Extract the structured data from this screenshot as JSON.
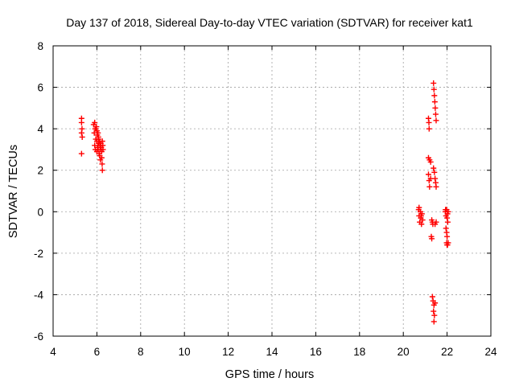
{
  "chart_data": {
    "type": "scatter",
    "title": "Day 137 of 2018, Sidereal Day-to-day VTEC variation (SDTVAR) for receiver kat1",
    "xlabel": "GPS time / hours",
    "ylabel": "SDTVAR / TECUs",
    "xlim": [
      4,
      24
    ],
    "ylim": [
      -6,
      8
    ],
    "xticks": [
      "4",
      "6",
      "8",
      "10",
      "12",
      "14",
      "16",
      "18",
      "20",
      "22",
      "24"
    ],
    "yticks": [
      "-6",
      "-4",
      "-2",
      "0",
      "2",
      "4",
      "6",
      "8"
    ],
    "grid": true,
    "marker": "+",
    "color": "#ff0000",
    "series": [
      {
        "name": "kat1",
        "points": [
          [
            5.3,
            4.5
          ],
          [
            5.3,
            4.3
          ],
          [
            5.32,
            4.0
          ],
          [
            5.3,
            3.8
          ],
          [
            5.33,
            3.6
          ],
          [
            5.3,
            2.8
          ],
          [
            5.85,
            4.2
          ],
          [
            5.9,
            4.3
          ],
          [
            5.92,
            4.0
          ],
          [
            5.88,
            3.8
          ],
          [
            5.95,
            3.5
          ],
          [
            5.9,
            3.2
          ],
          [
            5.93,
            3.0
          ],
          [
            5.98,
            4.1
          ],
          [
            6.0,
            3.9
          ],
          [
            6.02,
            3.7
          ],
          [
            6.0,
            3.4
          ],
          [
            6.03,
            3.1
          ],
          [
            6.0,
            2.9
          ],
          [
            6.05,
            3.8
          ],
          [
            6.07,
            3.6
          ],
          [
            6.08,
            3.3
          ],
          [
            6.06,
            3.0
          ],
          [
            6.1,
            2.8
          ],
          [
            6.08,
            3.5
          ],
          [
            6.12,
            3.4
          ],
          [
            6.14,
            3.2
          ],
          [
            6.15,
            3.0
          ],
          [
            6.13,
            2.7
          ],
          [
            6.16,
            2.5
          ],
          [
            6.18,
            3.3
          ],
          [
            6.2,
            3.1
          ],
          [
            6.22,
            2.9
          ],
          [
            6.22,
            2.6
          ],
          [
            6.24,
            2.3
          ],
          [
            6.25,
            2.0
          ],
          [
            6.25,
            3.4
          ],
          [
            6.27,
            3.2
          ],
          [
            6.28,
            3.0
          ],
          [
            5.95,
            4.0
          ],
          [
            6.05,
            3.2
          ],
          [
            20.7,
            0.1
          ],
          [
            20.72,
            -0.2
          ],
          [
            20.75,
            -0.5
          ],
          [
            20.78,
            0.0
          ],
          [
            20.8,
            -0.3
          ],
          [
            20.83,
            -0.6
          ],
          [
            20.85,
            -0.1
          ],
          [
            20.88,
            -0.4
          ],
          [
            20.72,
            0.2
          ],
          [
            20.82,
            -0.2
          ],
          [
            21.15,
            4.5
          ],
          [
            21.17,
            4.3
          ],
          [
            21.18,
            4.0
          ],
          [
            21.15,
            2.6
          ],
          [
            21.2,
            2.5
          ],
          [
            21.25,
            2.4
          ],
          [
            21.15,
            1.8
          ],
          [
            21.18,
            1.5
          ],
          [
            21.2,
            1.2
          ],
          [
            21.25,
            1.6
          ],
          [
            21.3,
            -0.4
          ],
          [
            21.33,
            -0.5
          ],
          [
            21.35,
            -0.6
          ],
          [
            21.28,
            -1.2
          ],
          [
            21.3,
            -1.3
          ],
          [
            21.33,
            -4.1
          ],
          [
            21.36,
            -4.3
          ],
          [
            21.4,
            -4.5
          ],
          [
            21.38,
            -4.8
          ],
          [
            21.42,
            -5.0
          ],
          [
            21.4,
            -5.3
          ],
          [
            21.45,
            -4.4
          ],
          [
            21.38,
            6.2
          ],
          [
            21.4,
            5.9
          ],
          [
            21.42,
            5.6
          ],
          [
            21.44,
            5.3
          ],
          [
            21.46,
            5.0
          ],
          [
            21.48,
            4.7
          ],
          [
            21.5,
            4.4
          ],
          [
            21.38,
            2.1
          ],
          [
            21.42,
            1.9
          ],
          [
            21.45,
            1.6
          ],
          [
            21.48,
            1.4
          ],
          [
            21.5,
            1.2
          ],
          [
            21.45,
            -0.6
          ],
          [
            21.5,
            -0.5
          ],
          [
            21.92,
            0.0
          ],
          [
            21.95,
            -0.2
          ],
          [
            21.98,
            0.1
          ],
          [
            22.0,
            -0.3
          ],
          [
            22.02,
            -0.1
          ],
          [
            22.05,
            0.0
          ],
          [
            21.95,
            -0.8
          ],
          [
            21.98,
            -1.0
          ],
          [
            22.0,
            -1.2
          ],
          [
            21.98,
            -1.5
          ],
          [
            22.0,
            -1.6
          ],
          [
            22.02,
            -1.6
          ],
          [
            22.05,
            -1.5
          ],
          [
            21.93,
            0.1
          ],
          [
            22.03,
            -0.5
          ]
        ]
      }
    ]
  }
}
